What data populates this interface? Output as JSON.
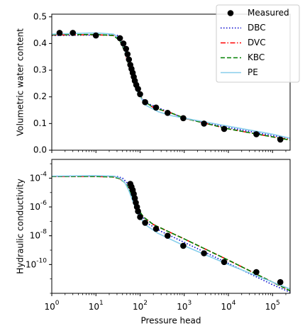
{
  "chart_data": [
    {
      "type": "scatter",
      "ylabel": "Volumetric water content",
      "xscale": "log",
      "xlim": [
        1,
        250000
      ],
      "ylim": [
        0,
        0.51
      ],
      "yticks": [
        0.0,
        0.1,
        0.2,
        0.3,
        0.4,
        0.5
      ],
      "ytick_labels": [
        "0.0",
        "0.1",
        "0.2",
        "0.3",
        "0.4",
        "0.5"
      ],
      "legend": {
        "placement": "top-right",
        "entries": [
          "Measured",
          "DBC",
          "DVC",
          "KBC",
          "PE"
        ]
      },
      "measured": {
        "name": "Measured",
        "x": [
          1.5,
          3,
          10,
          35,
          42,
          48,
          52,
          56,
          60,
          64,
          68,
          72,
          76,
          82,
          90,
          100,
          130,
          230,
          420,
          950,
          2800,
          8000,
          43000,
          150000
        ],
        "y": [
          0.44,
          0.44,
          0.43,
          0.42,
          0.4,
          0.38,
          0.36,
          0.34,
          0.32,
          0.305,
          0.29,
          0.275,
          0.26,
          0.245,
          0.23,
          0.21,
          0.18,
          0.16,
          0.14,
          0.12,
          0.1,
          0.08,
          0.06,
          0.04
        ]
      },
      "series": [
        {
          "name": "DBC",
          "color": "#0000cc",
          "style": "dotted",
          "x": [
            1,
            10,
            30,
            40,
            50,
            60,
            70,
            80,
            100,
            150,
            250,
            500,
            1000,
            10000,
            100000,
            250000
          ],
          "y": [
            0.43,
            0.432,
            0.432,
            0.41,
            0.36,
            0.3,
            0.26,
            0.23,
            0.2,
            0.175,
            0.16,
            0.14,
            0.12,
            0.085,
            0.055,
            0.045
          ]
        },
        {
          "name": "DVC",
          "color": "#ff0000",
          "style": "dashdot",
          "x": [
            1,
            10,
            25,
            35,
            45,
            55,
            65,
            75,
            90,
            120,
            200,
            500,
            1000,
            10000,
            100000,
            250000
          ],
          "y": [
            0.432,
            0.433,
            0.43,
            0.41,
            0.37,
            0.32,
            0.28,
            0.25,
            0.215,
            0.185,
            0.16,
            0.14,
            0.12,
            0.08,
            0.05,
            0.04
          ]
        },
        {
          "name": "KBC",
          "color": "#008000",
          "style": "dashed",
          "x": [
            1,
            10,
            25,
            35,
            45,
            55,
            65,
            75,
            90,
            120,
            200,
            500,
            1000,
            10000,
            100000,
            250000
          ],
          "y": [
            0.433,
            0.434,
            0.43,
            0.41,
            0.37,
            0.32,
            0.28,
            0.25,
            0.215,
            0.185,
            0.16,
            0.14,
            0.12,
            0.08,
            0.05,
            0.038
          ]
        },
        {
          "name": "PE",
          "color": "#87ceeb",
          "style": "solid",
          "x": [
            1,
            10,
            25,
            35,
            45,
            55,
            65,
            75,
            90,
            130,
            250,
            500,
            1000,
            10000,
            100000,
            250000
          ],
          "y": [
            0.435,
            0.44,
            0.435,
            0.415,
            0.375,
            0.325,
            0.285,
            0.255,
            0.215,
            0.17,
            0.145,
            0.13,
            0.12,
            0.09,
            0.06,
            0.045
          ]
        }
      ]
    },
    {
      "type": "scatter",
      "xlabel": "Pressure head",
      "ylabel": "Hydraulic conductivity",
      "xscale": "log",
      "yscale": "log",
      "xlim": [
        1,
        250000
      ],
      "ylim": [
        1e-12,
        0.002
      ],
      "xticks": [
        1,
        10,
        100,
        1000,
        10000,
        100000
      ],
      "xtick_labels": [
        "10^0",
        "10^1",
        "10^2",
        "10^3",
        "10^4",
        "10^5"
      ],
      "yticks": [
        1e-10,
        1e-08,
        1e-06,
        0.0001
      ],
      "ytick_labels": [
        "10^-10",
        "10^-8",
        "10^-6",
        "10^-4"
      ],
      "measured": {
        "name": "Measured",
        "x": [
          60,
          64,
          68,
          72,
          76,
          80,
          85,
          90,
          100,
          130,
          230,
          420,
          950,
          2800,
          8000,
          43000,
          150000
        ],
        "y": [
          4e-05,
          2.5e-05,
          1.5e-05,
          8e-06,
          4e-06,
          2e-06,
          1e-06,
          5e-07,
          2e-07,
          8e-08,
          3e-08,
          1e-08,
          2e-09,
          6e-10,
          1.5e-10,
          3e-11,
          6e-12
        ]
      },
      "series": [
        {
          "name": "DBC",
          "color": "#0000cc",
          "style": "dotted",
          "x": [
            1,
            10,
            30,
            40,
            50,
            60,
            70,
            80,
            100,
            150,
            300,
            1000,
            10000,
            100000,
            250000
          ],
          "y": [
            0.00013,
            0.00014,
            0.00013,
            0.0001,
            5e-05,
            1.5e-05,
            5e-06,
            1.5e-06,
            3.5e-07,
            7e-08,
            2e-08,
            3.5e-09,
            1.2e-10,
            4e-12,
            1.2e-12
          ]
        },
        {
          "name": "DVC",
          "color": "#ff0000",
          "style": "dashdot",
          "x": [
            1,
            10,
            25,
            35,
            45,
            55,
            65,
            75,
            90,
            120,
            200,
            1000,
            10000,
            100000,
            250000
          ],
          "y": [
            0.00013,
            0.00013,
            0.00012,
            9e-05,
            5e-05,
            2e-05,
            7e-06,
            2.5e-06,
            7e-07,
            2e-07,
            6e-08,
            6e-09,
            2e-10,
            6e-12,
            1.5e-12
          ]
        },
        {
          "name": "KBC",
          "color": "#008000",
          "style": "dashed",
          "x": [
            1,
            10,
            25,
            35,
            45,
            55,
            65,
            75,
            90,
            120,
            200,
            1000,
            10000,
            100000,
            250000
          ],
          "y": [
            0.00013,
            0.00013,
            0.00012,
            9e-05,
            5e-05,
            2e-05,
            7e-06,
            2.5e-06,
            7e-07,
            2e-07,
            6e-08,
            6e-09,
            2e-10,
            6e-12,
            1.5e-12
          ]
        },
        {
          "name": "PE",
          "color": "#87ceeb",
          "style": "solid",
          "x": [
            1,
            10,
            25,
            35,
            45,
            55,
            65,
            75,
            90,
            130,
            250,
            1000,
            10000,
            100000,
            250000
          ],
          "y": [
            0.00014,
            0.00015,
            0.00014,
            0.0001,
            5e-05,
            1.5e-05,
            4e-06,
            1.2e-06,
            3e-07,
            6e-08,
            1.5e-08,
            2e-09,
            1e-10,
            6e-12,
            2e-12
          ]
        }
      ]
    }
  ]
}
